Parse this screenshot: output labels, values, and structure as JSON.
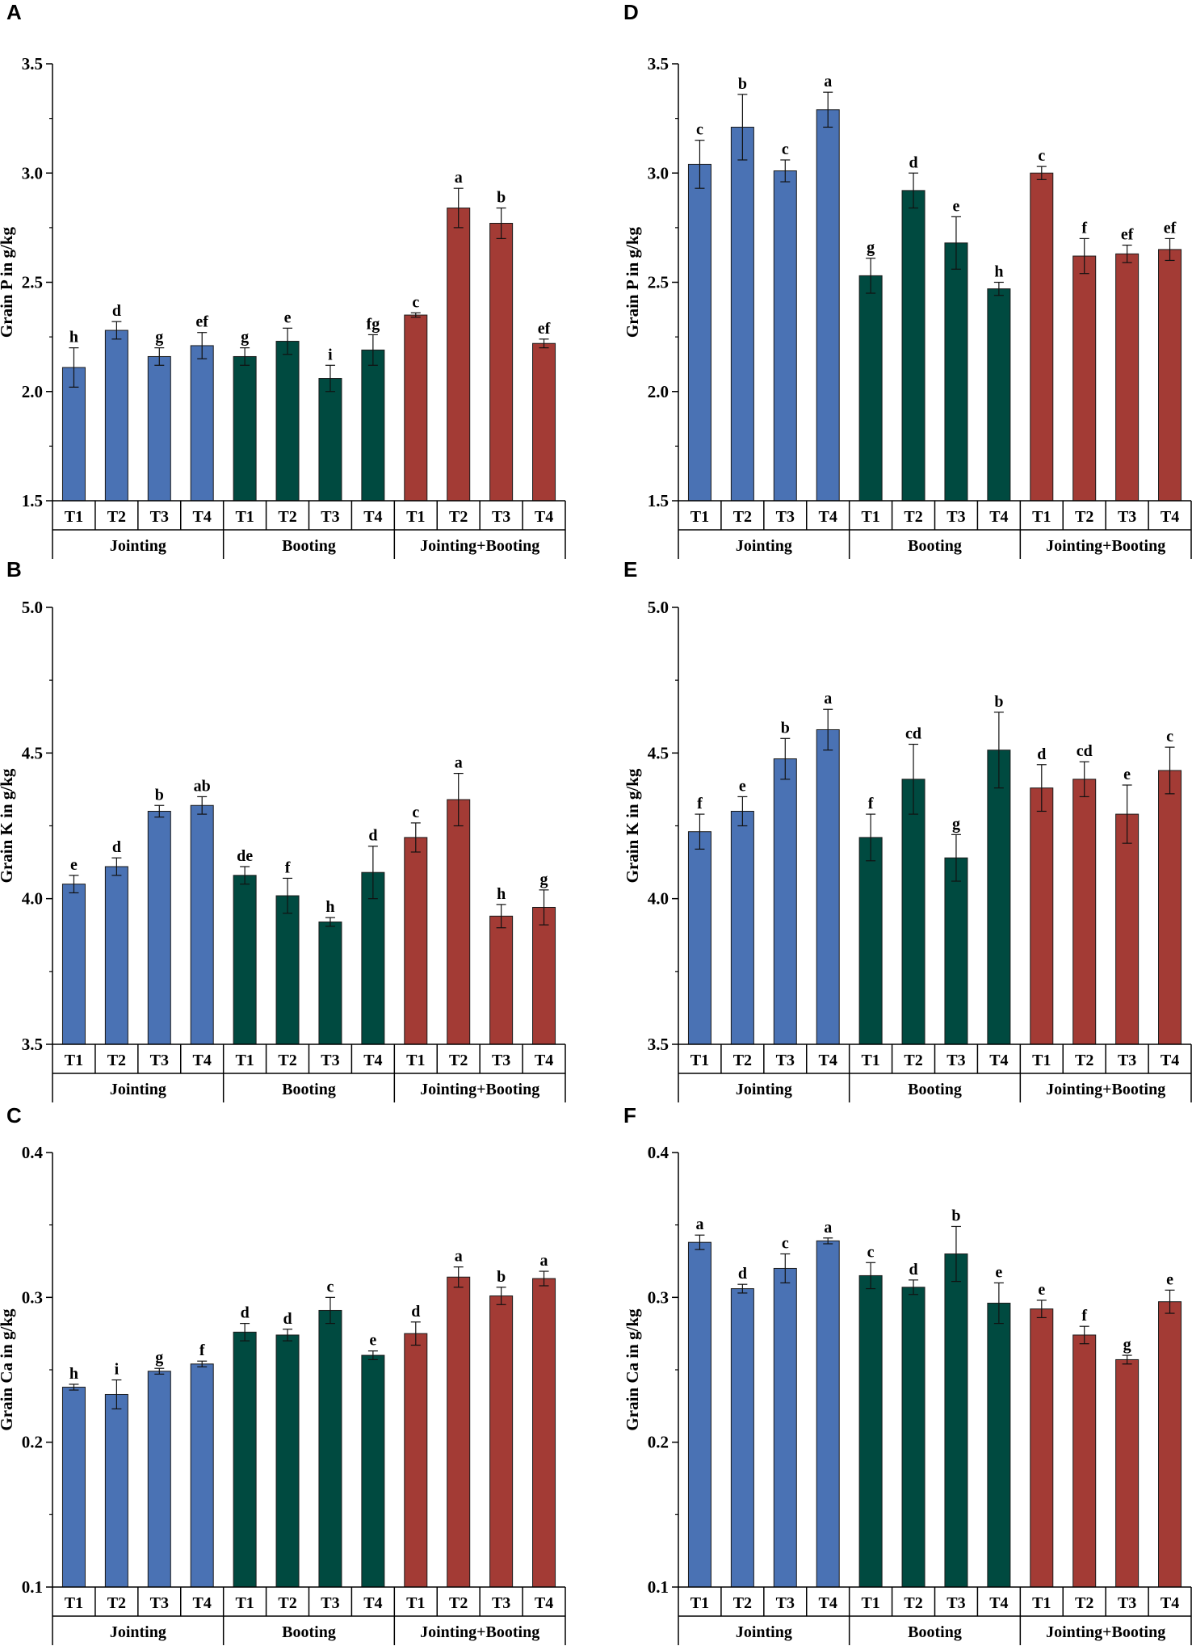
{
  "chart_data": [
    {
      "panel": "A",
      "type": "bar",
      "ylabel": "Grain P in g/kg",
      "ylim": [
        1.5,
        3.5
      ],
      "yticks": [
        "1.5",
        "2.0",
        "2.5",
        "3.0",
        "3.5"
      ],
      "categories": [
        "T1",
        "T2",
        "T3",
        "T4",
        "T1",
        "T2",
        "T3",
        "T4",
        "T1",
        "T2",
        "T3",
        "T4"
      ],
      "groups": [
        {
          "name": "Jointing",
          "color": "#4a72b4"
        },
        {
          "name": "Booting",
          "color": "#004a40"
        },
        {
          "name": "Jointing+Booting",
          "color": "#a33b35"
        }
      ],
      "values": [
        2.11,
        2.28,
        2.16,
        2.21,
        2.16,
        2.23,
        2.06,
        2.19,
        2.35,
        2.84,
        2.77,
        2.22
      ],
      "errors": [
        0.09,
        0.04,
        0.04,
        0.06,
        0.04,
        0.06,
        0.06,
        0.07,
        0.01,
        0.09,
        0.07,
        0.02
      ],
      "letters": [
        "h",
        "d",
        "g",
        "ef",
        "g",
        "e",
        "i",
        "fg",
        "c",
        "a",
        "b",
        "ef"
      ]
    },
    {
      "panel": "B",
      "type": "bar",
      "ylabel": "Grain K in g/kg",
      "ylim": [
        3.5,
        5.0
      ],
      "yticks": [
        "3.5",
        "4.0",
        "4.5",
        "5.0"
      ],
      "categories": [
        "T1",
        "T2",
        "T3",
        "T4",
        "T1",
        "T2",
        "T3",
        "T4",
        "T1",
        "T2",
        "T3",
        "T4"
      ],
      "groups": [
        {
          "name": "Jointing",
          "color": "#4a72b4"
        },
        {
          "name": "Booting",
          "color": "#004a40"
        },
        {
          "name": "Jointing+Booting",
          "color": "#a33b35"
        }
      ],
      "values": [
        4.05,
        4.11,
        4.3,
        4.32,
        4.08,
        4.01,
        3.92,
        4.09,
        4.21,
        4.34,
        3.94,
        3.97
      ],
      "errors": [
        0.03,
        0.03,
        0.02,
        0.03,
        0.03,
        0.06,
        0.015,
        0.09,
        0.05,
        0.09,
        0.04,
        0.06
      ],
      "letters": [
        "e",
        "d",
        "b",
        "ab",
        "de",
        "f",
        "h",
        "d",
        "c",
        "a",
        "h",
        "g"
      ]
    },
    {
      "panel": "C",
      "type": "bar",
      "ylabel": "Grain Ca in g/kg",
      "ylim": [
        0.1,
        0.4
      ],
      "yticks": [
        "0.1",
        "0.2",
        "0.3",
        "0.4"
      ],
      "categories": [
        "T1",
        "T2",
        "T3",
        "T4",
        "T1",
        "T2",
        "T3",
        "T4",
        "T1",
        "T2",
        "T3",
        "T4"
      ],
      "groups": [
        {
          "name": "Jointing",
          "color": "#4a72b4"
        },
        {
          "name": "Booting",
          "color": "#004a40"
        },
        {
          "name": "Jointing+Booting",
          "color": "#a33b35"
        }
      ],
      "values": [
        0.238,
        0.233,
        0.249,
        0.254,
        0.276,
        0.274,
        0.291,
        0.26,
        0.275,
        0.314,
        0.301,
        0.313
      ],
      "errors": [
        0.002,
        0.01,
        0.002,
        0.002,
        0.006,
        0.004,
        0.009,
        0.003,
        0.008,
        0.007,
        0.006,
        0.005
      ],
      "letters": [
        "h",
        "i",
        "g",
        "f",
        "d",
        "d",
        "c",
        "e",
        "d",
        "a",
        "b",
        "a"
      ]
    },
    {
      "panel": "D",
      "type": "bar",
      "ylabel": "Grain P in g/kg",
      "ylim": [
        1.5,
        3.5
      ],
      "yticks": [
        "1.5",
        "2.0",
        "2.5",
        "3.0",
        "3.5"
      ],
      "categories": [
        "T1",
        "T2",
        "T3",
        "T4",
        "T1",
        "T2",
        "T3",
        "T4",
        "T1",
        "T2",
        "T3",
        "T4"
      ],
      "groups": [
        {
          "name": "Jointing",
          "color": "#4a72b4"
        },
        {
          "name": "Booting",
          "color": "#004a40"
        },
        {
          "name": "Jointing+Booting",
          "color": "#a33b35"
        }
      ],
      "values": [
        3.04,
        3.21,
        3.01,
        3.29,
        2.53,
        2.92,
        2.68,
        2.47,
        3.0,
        2.62,
        2.63,
        2.65
      ],
      "errors": [
        0.11,
        0.15,
        0.05,
        0.08,
        0.08,
        0.08,
        0.12,
        0.03,
        0.03,
        0.08,
        0.04,
        0.05
      ],
      "letters": [
        "c",
        "b",
        "c",
        "a",
        "g",
        "d",
        "e",
        "h",
        "c",
        "f",
        "ef",
        "ef"
      ]
    },
    {
      "panel": "E",
      "type": "bar",
      "ylabel": "Grain K in g/kg",
      "ylim": [
        3.5,
        5.0
      ],
      "yticks": [
        "3.5",
        "4.0",
        "4.5",
        "5.0"
      ],
      "categories": [
        "T1",
        "T2",
        "T3",
        "T4",
        "T1",
        "T2",
        "T3",
        "T4",
        "T1",
        "T2",
        "T3",
        "T4"
      ],
      "groups": [
        {
          "name": "Jointing",
          "color": "#4a72b4"
        },
        {
          "name": "Booting",
          "color": "#004a40"
        },
        {
          "name": "Jointing+Booting",
          "color": "#a33b35"
        }
      ],
      "values": [
        4.23,
        4.3,
        4.48,
        4.58,
        4.21,
        4.41,
        4.14,
        4.51,
        4.38,
        4.41,
        4.29,
        4.44
      ],
      "errors": [
        0.06,
        0.05,
        0.07,
        0.07,
        0.08,
        0.12,
        0.08,
        0.13,
        0.08,
        0.06,
        0.1,
        0.08
      ],
      "letters": [
        "f",
        "e",
        "b",
        "a",
        "f",
        "cd",
        "g",
        "b",
        "d",
        "cd",
        "e",
        "c"
      ]
    },
    {
      "panel": "F",
      "type": "bar",
      "ylabel": "Grain Ca in g/kg",
      "ylim": [
        0.1,
        0.4
      ],
      "yticks": [
        "0.1",
        "0.2",
        "0.3",
        "0.4"
      ],
      "categories": [
        "T1",
        "T2",
        "T3",
        "T4",
        "T1",
        "T2",
        "T3",
        "T4",
        "T1",
        "T2",
        "T3",
        "T4"
      ],
      "groups": [
        {
          "name": "Jointing",
          "color": "#4a72b4"
        },
        {
          "name": "Booting",
          "color": "#004a40"
        },
        {
          "name": "Jointing+Booting",
          "color": "#a33b35"
        }
      ],
      "values": [
        0.338,
        0.306,
        0.32,
        0.339,
        0.315,
        0.307,
        0.33,
        0.296,
        0.292,
        0.274,
        0.257,
        0.297
      ],
      "errors": [
        0.005,
        0.003,
        0.01,
        0.002,
        0.009,
        0.005,
        0.019,
        0.014,
        0.006,
        0.006,
        0.003,
        0.008
      ],
      "letters": [
        "a",
        "d",
        "c",
        "a",
        "c",
        "d",
        "b",
        "e",
        "e",
        "f",
        "g",
        "e"
      ]
    }
  ]
}
